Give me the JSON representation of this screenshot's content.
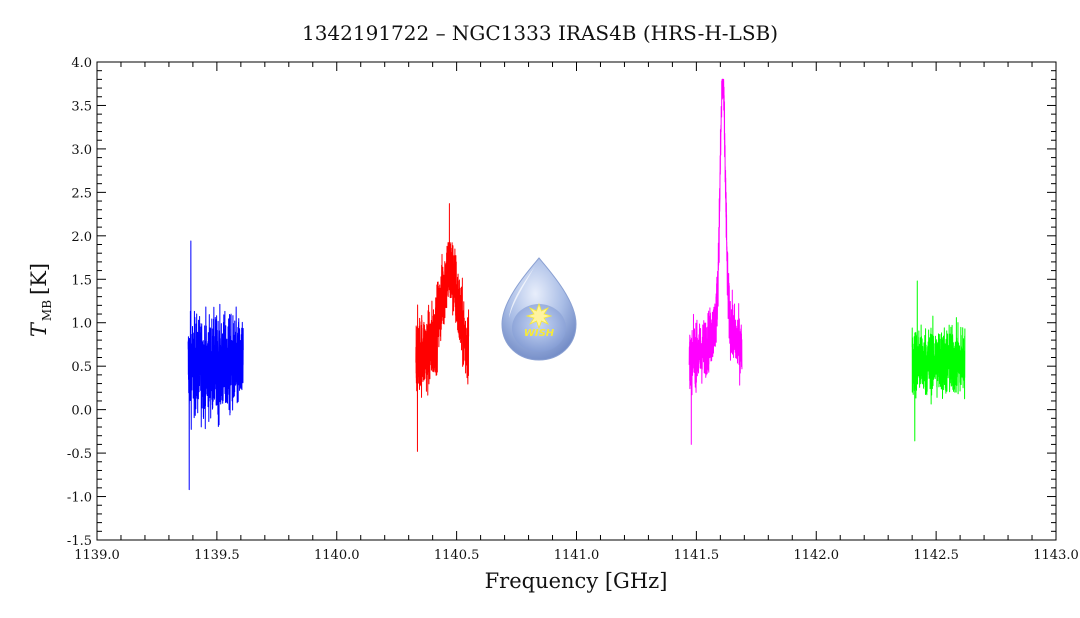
{
  "chart_data": {
    "type": "line",
    "title": "1342191722 – NGC1333 IRAS4B (HRS-H-LSB)",
    "xlabel": "Frequency [GHz]",
    "ylabel_main": "T",
    "ylabel_sub": "MB",
    "ylabel_unit": "[K]",
    "xlim": [
      1139.0,
      1143.0
    ],
    "ylim": [
      -1.5,
      4.0
    ],
    "x_ticks": [
      1139.0,
      1139.5,
      1140.0,
      1140.5,
      1141.0,
      1141.5,
      1142.0,
      1142.5,
      1143.0
    ],
    "x_tick_labels": [
      "1139.0",
      "1139.5",
      "1140.0",
      "1140.5",
      "1141.0",
      "1141.5",
      "1142.0",
      "1142.5",
      "1143.0"
    ],
    "y_ticks": [
      -1.5,
      -1.0,
      -0.5,
      0.0,
      0.5,
      1.0,
      1.5,
      2.0,
      2.5,
      3.0,
      3.5,
      4.0
    ],
    "y_tick_labels": [
      "-1.5",
      "-1.0",
      "-0.5",
      "0.0",
      "0.5",
      "1.0",
      "1.5",
      "2.0",
      "2.5",
      "3.0",
      "3.5",
      "4.0"
    ],
    "grid": false,
    "series": [
      {
        "color": "#0000ff",
        "x_range": [
          1139.38,
          1139.61
        ],
        "baseline": 0.5,
        "noise": 0.5,
        "peaks": [],
        "min": -0.92,
        "max": 1.94
      },
      {
        "color": "#ff0000",
        "x_range": [
          1140.33,
          1140.55
        ],
        "baseline": 0.65,
        "noise": 0.4,
        "peaks": [
          {
            "x": 1140.47,
            "amp": 0.95,
            "width": 0.035
          }
        ],
        "min": -0.48,
        "max": 2.37
      },
      {
        "color": "#ff00ff",
        "x_range": [
          1141.47,
          1141.69
        ],
        "baseline": 0.6,
        "noise": 0.3,
        "peaks": [
          {
            "x": 1141.61,
            "amp": 2.7,
            "width": 0.011
          },
          {
            "x": 1141.61,
            "amp": 0.45,
            "width": 0.045
          }
        ],
        "min": -0.4,
        "max": 3.8
      },
      {
        "color": "#00ff00",
        "x_range": [
          1142.4,
          1142.62
        ],
        "baseline": 0.55,
        "noise": 0.35,
        "peaks": [],
        "min": -0.36,
        "max": 1.48
      }
    ]
  },
  "logo": {
    "text": "WISH"
  }
}
